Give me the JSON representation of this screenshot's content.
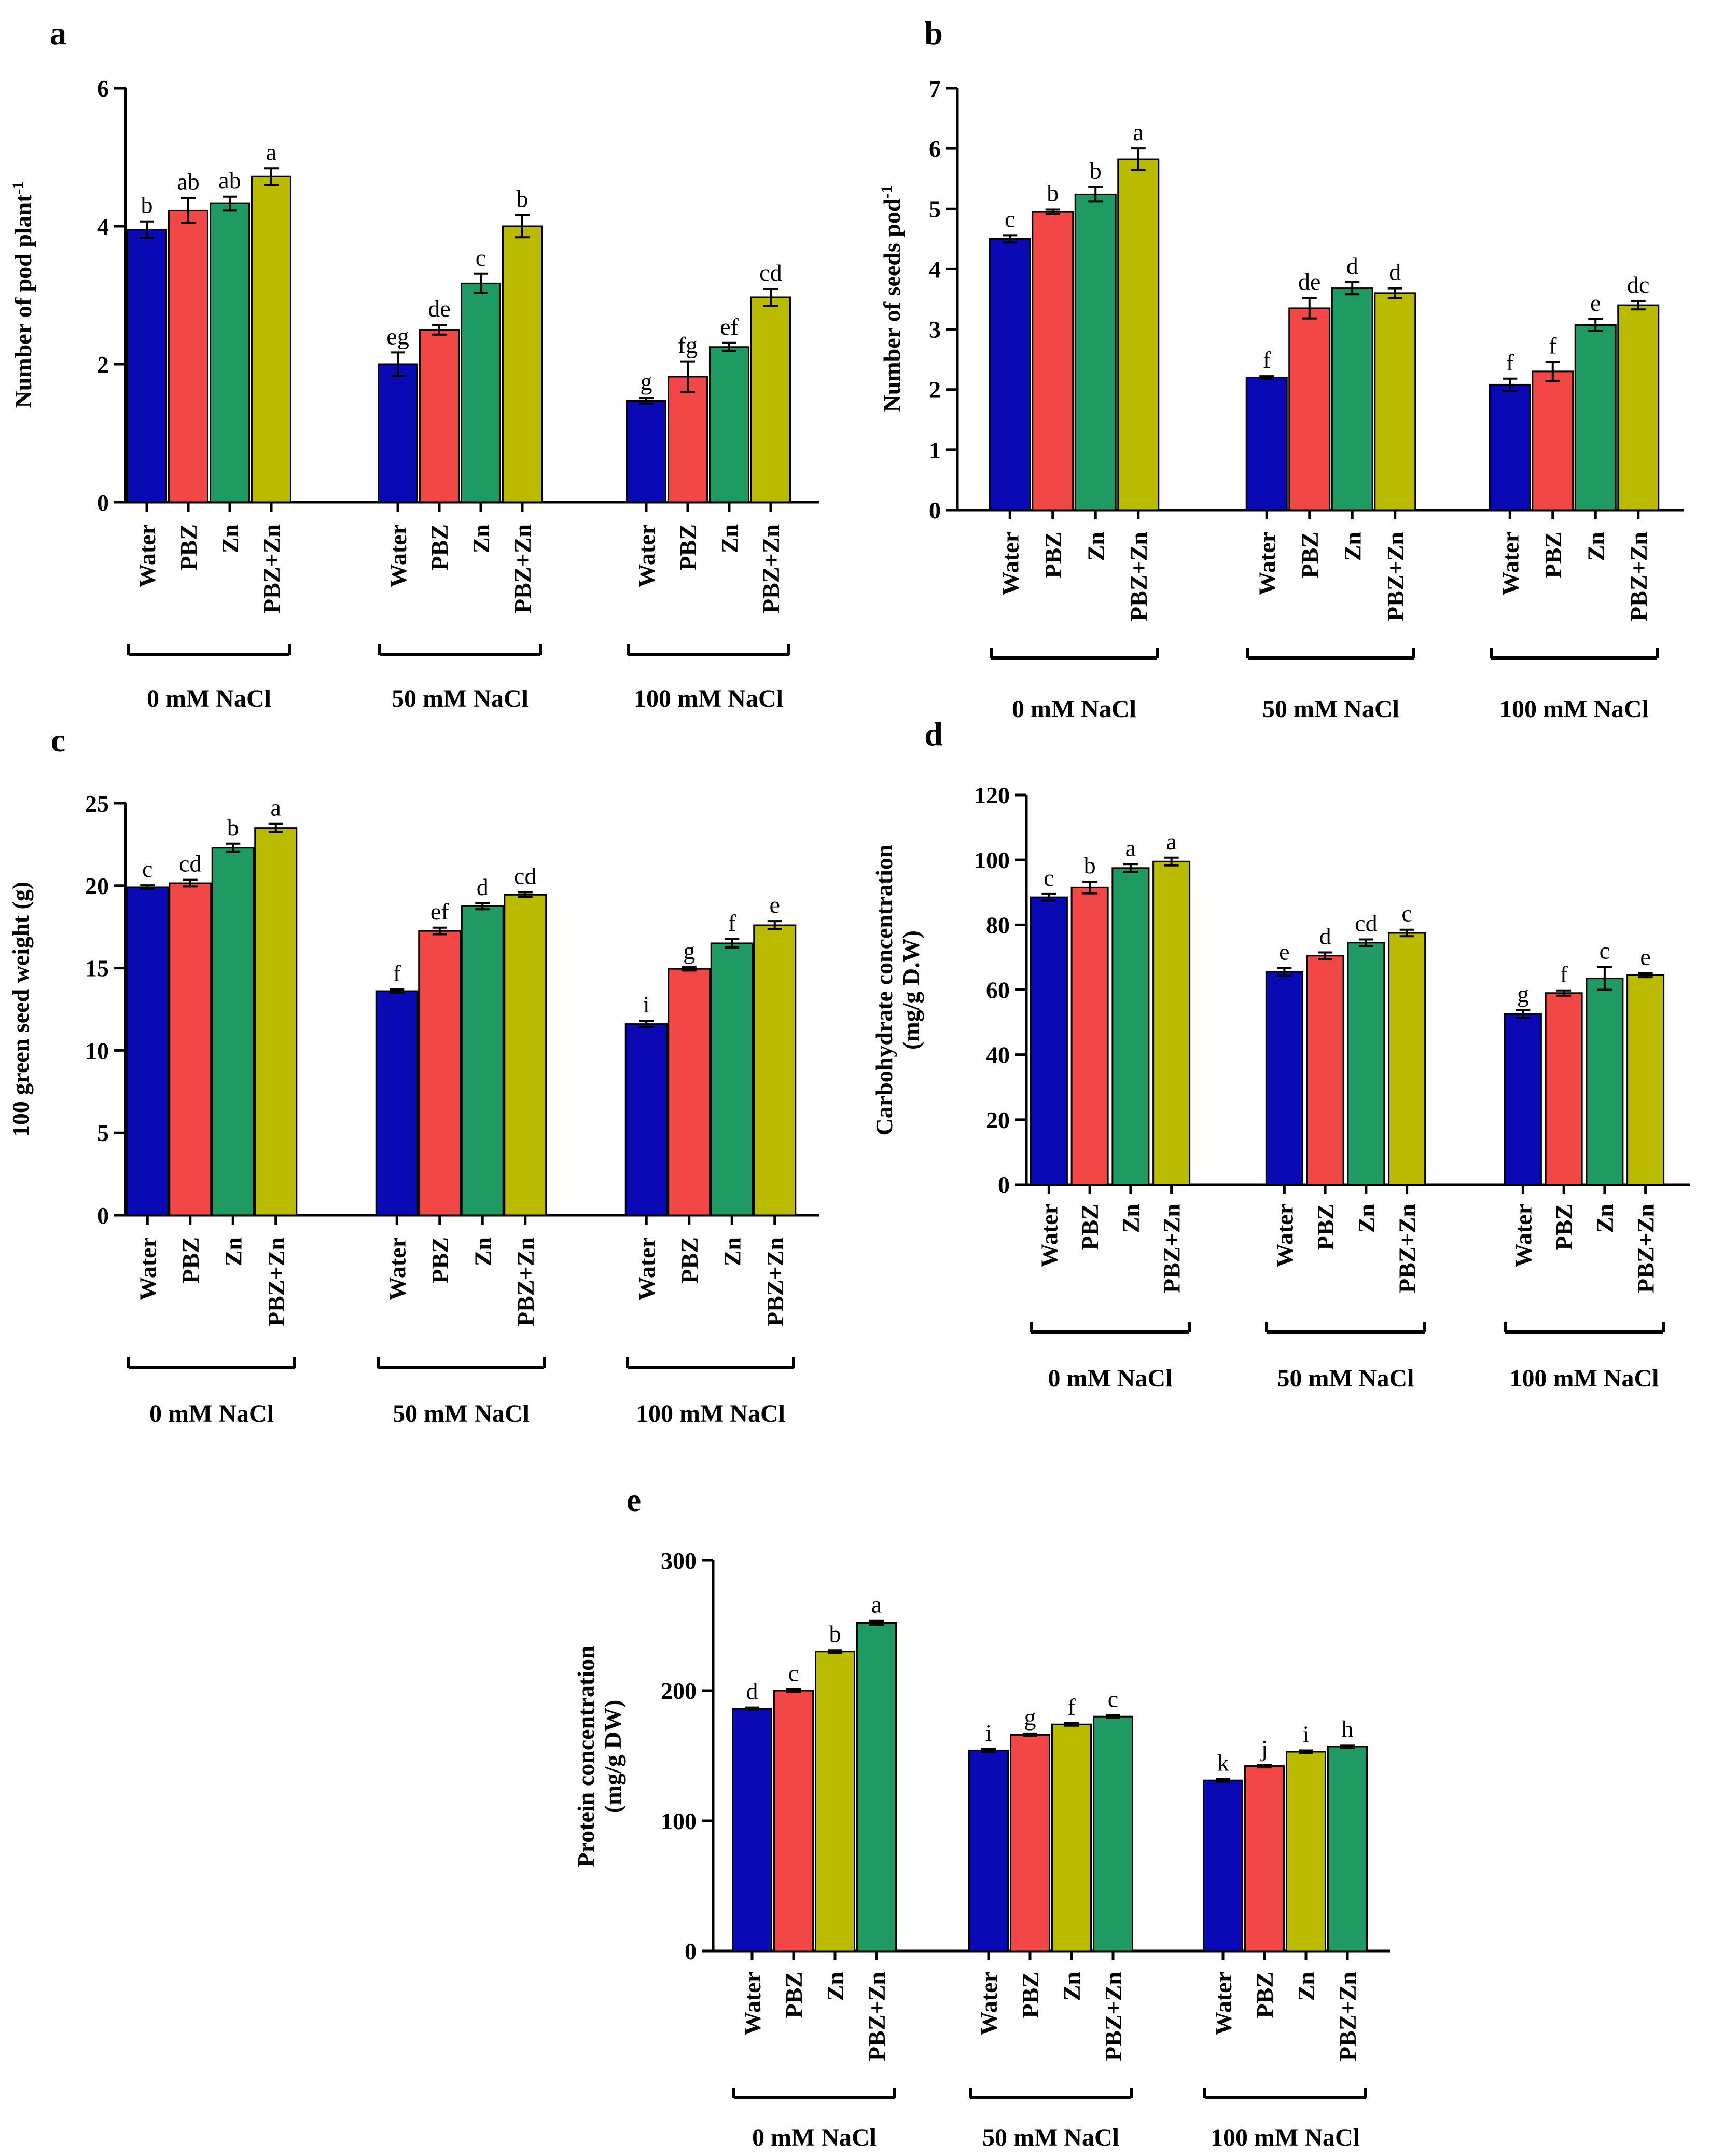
{
  "chart_data": [
    {
      "panel": "a",
      "type": "bar",
      "ylabel": "Number of pod plant",
      "ylabel_sup": "-1",
      "ylim": [
        0,
        6
      ],
      "yticks": [
        "0",
        "2",
        "4",
        "6"
      ],
      "categories": [
        "Water",
        "PBZ",
        "Zn",
        "PBZ+Zn"
      ],
      "groups": [
        "0 mM NaCl",
        "50 mM NaCl",
        "100 mM NaCl"
      ],
      "colors": [
        "#0a0ab4",
        "#f24747",
        "#1f9a63",
        "#baba00"
      ],
      "values": [
        [
          3.95,
          4.23,
          4.33,
          4.72
        ],
        [
          2.0,
          2.5,
          3.17,
          4.0
        ],
        [
          1.47,
          1.82,
          2.25,
          2.97
        ]
      ],
      "errors": [
        [
          0.12,
          0.18,
          0.1,
          0.12
        ],
        [
          0.17,
          0.07,
          0.14,
          0.16
        ],
        [
          0.04,
          0.22,
          0.06,
          0.12
        ]
      ],
      "sig": [
        [
          "b",
          "ab",
          "ab",
          "a"
        ],
        [
          "eg",
          "de",
          "c",
          "b"
        ],
        [
          "g",
          "fg",
          "ef",
          "cd"
        ]
      ]
    },
    {
      "panel": "b",
      "type": "bar",
      "ylabel": "Number  of seeds pod",
      "ylabel_sup": "-1",
      "ylim": [
        0,
        7
      ],
      "yticks": [
        "0",
        "1",
        "2",
        "3",
        "4",
        "5",
        "6",
        "7"
      ],
      "categories": [
        "Water",
        "PBZ",
        "Zn",
        "PBZ+Zn"
      ],
      "groups": [
        "0 mM NaCl",
        "50 mM NaCl",
        "100 mM NaCl"
      ],
      "colors": [
        "#0a0ab4",
        "#f24747",
        "#1f9a63",
        "#baba00"
      ],
      "values": [
        [
          4.5,
          4.95,
          5.24,
          5.82
        ],
        [
          2.2,
          3.35,
          3.68,
          3.6
        ],
        [
          2.08,
          2.3,
          3.07,
          3.4
        ]
      ],
      "errors": [
        [
          0.06,
          0.04,
          0.12,
          0.18
        ],
        [
          0.02,
          0.17,
          0.1,
          0.08
        ],
        [
          0.1,
          0.16,
          0.1,
          0.07
        ]
      ],
      "sig": [
        [
          "c",
          "b",
          "b",
          "a"
        ],
        [
          "f",
          "de",
          "d",
          "d"
        ],
        [
          "f",
          "f",
          "e",
          "dc"
        ]
      ]
    },
    {
      "panel": "c",
      "type": "bar",
      "ylabel": "100 green seed weight (g)",
      "ylim": [
        0,
        25
      ],
      "yticks": [
        "0",
        "5",
        "10",
        "15",
        "20",
        "25"
      ],
      "categories": [
        "Water",
        "PBZ",
        "Zn",
        "PBZ+Zn"
      ],
      "groups": [
        "0 mM NaCl",
        "50 mM NaCl",
        "100 mM NaCl"
      ],
      "colors": [
        "#0a0ab4",
        "#f24747",
        "#1f9a63",
        "#baba00"
      ],
      "values": [
        [
          19.9,
          20.15,
          22.3,
          23.5
        ],
        [
          13.6,
          17.25,
          18.75,
          19.45
        ],
        [
          11.6,
          14.95,
          16.5,
          17.6
        ]
      ],
      "errors": [
        [
          0.12,
          0.2,
          0.25,
          0.25
        ],
        [
          0.1,
          0.2,
          0.18,
          0.15
        ],
        [
          0.2,
          0.1,
          0.25,
          0.25
        ]
      ],
      "sig": [
        [
          "c",
          "cd",
          "b",
          "a"
        ],
        [
          "f",
          "ef",
          "d",
          "cd"
        ],
        [
          "i",
          "g",
          "f",
          "e"
        ]
      ]
    },
    {
      "panel": "d",
      "type": "bar",
      "ylabel": "Carbohydrate  concentration",
      "ylabel2": "(mg/g D.W)",
      "ylim": [
        0,
        120
      ],
      "yticks": [
        "0",
        "20",
        "40",
        "60",
        "80",
        "100",
        "120"
      ],
      "categories": [
        "Water",
        "PBZ",
        "Zn",
        "PBZ+Zn"
      ],
      "groups": [
        "0 mM NaCl",
        "50 mM NaCl",
        "100 mM NaCl"
      ],
      "colors": [
        "#0a0ab4",
        "#f24747",
        "#1f9a63",
        "#baba00"
      ],
      "values": [
        [
          88.5,
          91.5,
          97.5,
          99.5
        ],
        [
          65.5,
          70.5,
          74.5,
          77.5
        ],
        [
          52.5,
          59.0,
          63.5,
          64.5
        ]
      ],
      "errors": [
        [
          1.0,
          1.8,
          1.2,
          1.2
        ],
        [
          1.2,
          1.0,
          1.0,
          1.0
        ],
        [
          1.2,
          0.8,
          3.5,
          0.6
        ]
      ],
      "sig": [
        [
          "c",
          "b",
          "a",
          "a"
        ],
        [
          "e",
          "d",
          "cd",
          "c"
        ],
        [
          "g",
          "f",
          "c",
          "e"
        ]
      ]
    },
    {
      "panel": "e",
      "type": "bar",
      "ylabel": "Protein concentration",
      "ylabel2": "(mg/g DW)",
      "ylim": [
        0,
        300
      ],
      "yticks": [
        "0",
        "100",
        "200",
        "300"
      ],
      "categories": [
        "Water",
        "PBZ",
        "Zn",
        "PBZ+Zn"
      ],
      "groups": [
        "0 mM NaCl",
        "50 mM NaCl",
        "100 mM NaCl"
      ],
      "colors": [
        "#0a0ab4",
        "#f24747",
        "#baba00",
        "#1f9a63"
      ],
      "values": [
        [
          186,
          200,
          230,
          252
        ],
        [
          154,
          166,
          174,
          180
        ],
        [
          131,
          142,
          153,
          157
        ]
      ],
      "errors": [
        [
          1.0,
          1.0,
          1.0,
          1.5
        ],
        [
          1.0,
          1.0,
          1.0,
          1.0
        ],
        [
          1.0,
          1.0,
          1.0,
          1.0
        ]
      ],
      "sig": [
        [
          "d",
          "c",
          "b",
          "a"
        ],
        [
          "i",
          "g",
          "f",
          "c"
        ],
        [
          "k",
          "j",
          "i",
          "h"
        ]
      ]
    }
  ]
}
